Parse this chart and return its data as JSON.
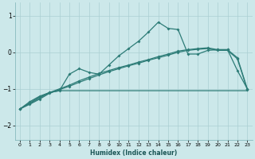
{
  "background_color": "#cce8ea",
  "grid_color": "#aacfd2",
  "line_color": "#2d7c77",
  "xlabel": "Humidex (Indice chaleur)",
  "xlim": [
    -0.5,
    23.5
  ],
  "ylim": [
    -2.4,
    1.35
  ],
  "xticks": [
    0,
    1,
    2,
    3,
    4,
    5,
    6,
    7,
    8,
    9,
    10,
    11,
    12,
    13,
    14,
    15,
    16,
    17,
    18,
    19,
    20,
    21,
    22,
    23
  ],
  "yticks": [
    -2,
    -1,
    0,
    1
  ],
  "peaked_x": [
    0,
    1,
    2,
    3,
    4,
    5,
    6,
    7,
    8,
    9,
    10,
    11,
    12,
    13,
    14,
    15,
    16,
    17,
    18,
    19,
    20,
    21,
    22,
    23
  ],
  "peaked_y": [
    -1.55,
    -1.35,
    -1.2,
    -1.1,
    -1.05,
    -0.6,
    -0.45,
    -0.55,
    -0.6,
    -0.35,
    -0.1,
    0.1,
    0.3,
    0.55,
    0.82,
    0.65,
    0.62,
    -0.05,
    -0.05,
    0.05,
    0.07,
    0.07,
    -0.5,
    -1.0
  ],
  "linear1_x": [
    0,
    1,
    2,
    3,
    4,
    5,
    6,
    7,
    8,
    9,
    10,
    11,
    12,
    13,
    14,
    15,
    16,
    17,
    18,
    19,
    20,
    21,
    22,
    23
  ],
  "linear1_y": [
    -1.55,
    -1.4,
    -1.25,
    -1.1,
    -1.0,
    -0.9,
    -0.78,
    -0.68,
    -0.58,
    -0.5,
    -0.42,
    -0.35,
    -0.27,
    -0.2,
    -0.12,
    -0.05,
    0.03,
    0.07,
    0.1,
    0.12,
    0.07,
    0.07,
    -0.15,
    -1.0
  ],
  "linear2_x": [
    0,
    1,
    2,
    3,
    4,
    5,
    6,
    7,
    8,
    9,
    10,
    11,
    12,
    13,
    14,
    15,
    16,
    17,
    18,
    19,
    20,
    21,
    22,
    23
  ],
  "linear2_y": [
    -1.55,
    -1.42,
    -1.28,
    -1.12,
    -1.02,
    -0.93,
    -0.82,
    -0.72,
    -0.62,
    -0.53,
    -0.45,
    -0.37,
    -0.3,
    -0.22,
    -0.15,
    -0.08,
    0.0,
    0.05,
    0.08,
    0.1,
    0.05,
    0.05,
    -0.18,
    -1.02
  ],
  "flat_x": [
    0,
    1,
    2,
    3,
    4,
    5,
    6,
    7,
    8,
    9,
    10,
    11,
    12,
    13,
    14,
    15,
    16,
    17,
    18,
    19,
    20,
    21,
    22,
    23
  ],
  "flat_y": [
    -1.55,
    -1.38,
    -1.22,
    -1.1,
    -1.05,
    -1.05,
    -1.05,
    -1.05,
    -1.05,
    -1.05,
    -1.05,
    -1.05,
    -1.05,
    -1.05,
    -1.05,
    -1.05,
    -1.05,
    -1.05,
    -1.05,
    -1.05,
    -1.05,
    -1.05,
    -1.05,
    -1.05
  ]
}
